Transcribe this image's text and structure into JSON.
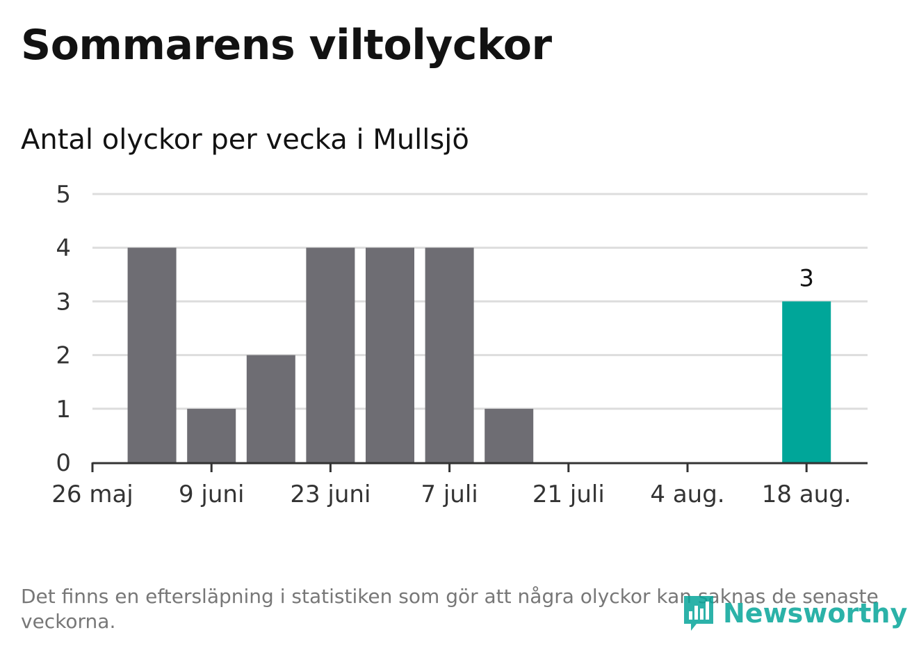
{
  "title": "Sommarens viltolyckor",
  "subtitle": "Antal olyckor per vecka i Mullsjö",
  "footnote": "Det finns en eftersläpning i statistiken som gör att några olyckor kan saknas de senaste veckorna.",
  "logo": {
    "text": "Newsworthy",
    "icon": "newsworthy-logo-icon"
  },
  "colors": {
    "bar": "#6e6d73",
    "highlight": "#00a699",
    "grid": "#dddddd",
    "axis": "#333333"
  },
  "chart_data": {
    "type": "bar",
    "title": "Sommarens viltolyckor",
    "subtitle": "Antal olyckor per vecka i Mullsjö",
    "x": [
      "2 juni",
      "9 juni",
      "16 juni",
      "23 juni",
      "30 juni",
      "7 juli",
      "14 juli",
      "21 juli",
      "28 juli",
      "4 aug.",
      "11 aug.",
      "18 aug."
    ],
    "values": [
      4,
      1,
      2,
      4,
      4,
      4,
      1,
      0,
      0,
      0,
      0,
      3
    ],
    "highlight_index": 11,
    "data_labels": [
      {
        "index": 11,
        "text": "3"
      }
    ],
    "ylim": [
      0,
      5
    ],
    "yticks": [
      0,
      1,
      2,
      3,
      4,
      5
    ],
    "xticks": [
      "26 maj",
      "9 juni",
      "23 juni",
      "7 juli",
      "21 juli",
      "4 aug.",
      "18 aug."
    ],
    "grid": true
  }
}
